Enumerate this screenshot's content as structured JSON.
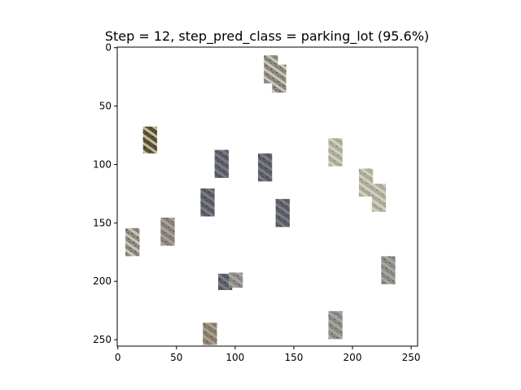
{
  "chart_data": {
    "type": "image",
    "title": "Step = 12, step_pred_class = parking_lot (95.6%)",
    "xlabel": "",
    "ylabel": "",
    "xlim": [
      -0.5,
      255.5
    ],
    "ylim": [
      255.5,
      -0.5
    ],
    "x_ticks": [
      0,
      50,
      100,
      150,
      200,
      250
    ],
    "y_ticks": [
      0,
      50,
      100,
      150,
      200,
      250
    ],
    "x_tick_labels": [
      "0",
      "50",
      "100",
      "150",
      "200",
      "250"
    ],
    "y_tick_labels": [
      "0",
      "50",
      "100",
      "150",
      "200",
      "250"
    ],
    "background": "#ffffff",
    "patches": [
      {
        "x": 125,
        "y": 7,
        "w": 12,
        "h": 24,
        "texture": "gray-stripe"
      },
      {
        "x": 132,
        "y": 15,
        "w": 12,
        "h": 24,
        "texture": "gray-stripe"
      },
      {
        "x": 22,
        "y": 68,
        "w": 12,
        "h": 23,
        "texture": "dark-brown"
      },
      {
        "x": 83,
        "y": 88,
        "w": 12,
        "h": 24,
        "texture": "asphalt"
      },
      {
        "x": 120,
        "y": 91,
        "w": 12,
        "h": 24,
        "texture": "asphalt"
      },
      {
        "x": 180,
        "y": 78,
        "w": 12,
        "h": 24,
        "texture": "concrete"
      },
      {
        "x": 206,
        "y": 104,
        "w": 12,
        "h": 24,
        "texture": "concrete"
      },
      {
        "x": 217,
        "y": 117,
        "w": 12,
        "h": 24,
        "texture": "concrete"
      },
      {
        "x": 71,
        "y": 121,
        "w": 12,
        "h": 24,
        "texture": "asphalt"
      },
      {
        "x": 135,
        "y": 130,
        "w": 12,
        "h": 24,
        "texture": "asphalt"
      },
      {
        "x": 37,
        "y": 146,
        "w": 12,
        "h": 24,
        "texture": "gray-red"
      },
      {
        "x": 7,
        "y": 155,
        "w": 12,
        "h": 24,
        "texture": "gray-stripe"
      },
      {
        "x": 225,
        "y": 179,
        "w": 12,
        "h": 24,
        "texture": "gray"
      },
      {
        "x": 86,
        "y": 194,
        "w": 12,
        "h": 14,
        "texture": "asphalt"
      },
      {
        "x": 95,
        "y": 193,
        "w": 12,
        "h": 13,
        "texture": "gray"
      },
      {
        "x": 180,
        "y": 226,
        "w": 12,
        "h": 24,
        "texture": "gray"
      },
      {
        "x": 73,
        "y": 236,
        "w": 12,
        "h": 19,
        "texture": "brown"
      }
    ],
    "textures": {
      "gray-stripe": {
        "base": "#8c8a82",
        "stripe": "#c9c6b5",
        "dots": "#3d3d3d"
      },
      "dark-brown": {
        "base": "#5a5246",
        "stripe": "#c8c08a",
        "dots": "#222222"
      },
      "asphalt": {
        "base": "#5d5f68",
        "stripe": "#7c7e87",
        "dots": "#2d2f36"
      },
      "concrete": {
        "base": "#b0ae9e",
        "stripe": "#d2d0bf",
        "dots": "#7e7c70"
      },
      "gray-red": {
        "base": "#87827e",
        "stripe": "#a9a39e",
        "dots": "#8a3b35"
      },
      "gray": {
        "base": "#8e8c86",
        "stripe": "#a8a6a0",
        "dots": "#4a4a4a"
      },
      "brown": {
        "base": "#8a8070",
        "stripe": "#aba18d",
        "dots": "#4d4638"
      }
    }
  }
}
